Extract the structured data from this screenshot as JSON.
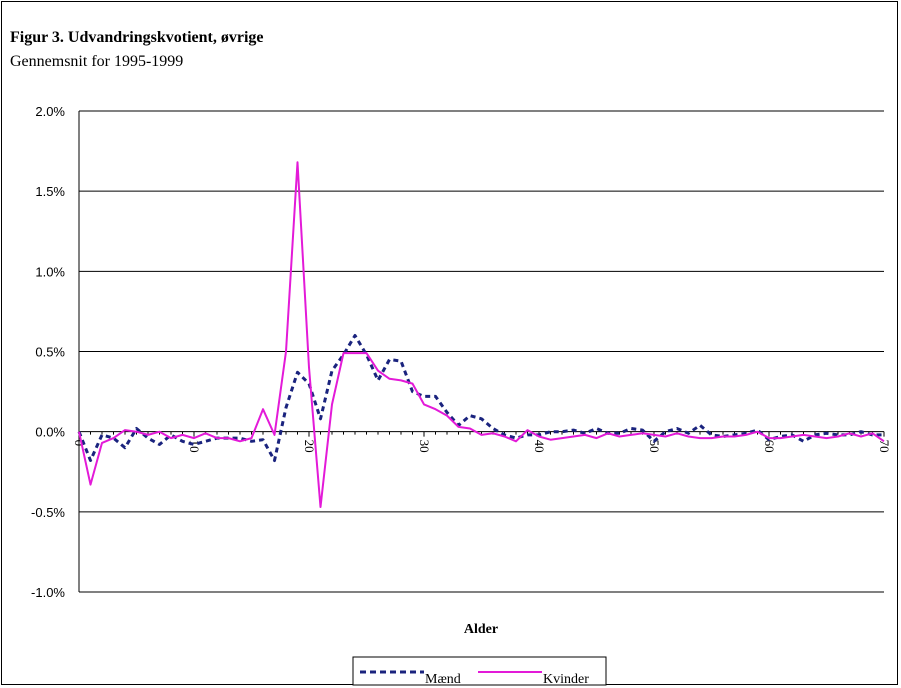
{
  "chart_data": {
    "type": "line",
    "title": "Figur 3. Udvandringskvotient, øvrige",
    "subtitle": "Gennemsnit for 1995-1999",
    "xlabel": "Alder",
    "ylabel": "",
    "xlim": [
      0,
      70
    ],
    "ylim": [
      -1.0,
      2.0
    ],
    "y_ticks": [
      {
        "value": -1.0,
        "label": "-1.0%"
      },
      {
        "value": -0.5,
        "label": "-0.5%"
      },
      {
        "value": 0.0,
        "label": "0.0%"
      },
      {
        "value": 0.5,
        "label": "0.5%"
      },
      {
        "value": 1.0,
        "label": "1.0%"
      },
      {
        "value": 1.5,
        "label": "1.5%"
      },
      {
        "value": 2.0,
        "label": "2.0%"
      }
    ],
    "x_ticks": [
      {
        "value": 0,
        "label": "0"
      },
      {
        "value": 10,
        "label": "10"
      },
      {
        "value": 20,
        "label": "20"
      },
      {
        "value": 30,
        "label": "30"
      },
      {
        "value": 40,
        "label": "40"
      },
      {
        "value": 50,
        "label": "50"
      },
      {
        "value": 60,
        "label": "60"
      },
      {
        "value": 70,
        "label": "70"
      }
    ],
    "grid": "horizontal",
    "legend_position": "bottom-center",
    "series": [
      {
        "name": "Mænd",
        "color": "#1a237e",
        "style": "dashed",
        "x": [
          0,
          1,
          2,
          3,
          4,
          5,
          6,
          7,
          8,
          9,
          10,
          11,
          12,
          13,
          14,
          15,
          16,
          17,
          18,
          19,
          20,
          21,
          22,
          23,
          24,
          25,
          26,
          27,
          28,
          29,
          30,
          31,
          32,
          33,
          34,
          35,
          36,
          37,
          38,
          39,
          40,
          41,
          42,
          43,
          44,
          45,
          46,
          47,
          48,
          49,
          50,
          51,
          52,
          53,
          54,
          55,
          56,
          57,
          58,
          59,
          60,
          61,
          62,
          63,
          64,
          65,
          66,
          67,
          68,
          69,
          70
        ],
        "values": [
          0.0,
          -0.18,
          -0.02,
          -0.04,
          -0.1,
          0.02,
          -0.04,
          -0.08,
          -0.02,
          -0.06,
          -0.08,
          -0.06,
          -0.04,
          -0.04,
          -0.04,
          -0.06,
          -0.05,
          -0.18,
          0.15,
          0.37,
          0.3,
          0.08,
          0.38,
          0.48,
          0.6,
          0.48,
          0.32,
          0.45,
          0.44,
          0.25,
          0.22,
          0.22,
          0.12,
          0.04,
          0.1,
          0.08,
          0.02,
          -0.02,
          -0.04,
          -0.02,
          -0.02,
          0.0,
          0.0,
          0.01,
          -0.01,
          0.02,
          -0.01,
          -0.01,
          0.02,
          0.01,
          -0.06,
          0.0,
          0.02,
          -0.01,
          0.04,
          -0.02,
          -0.03,
          -0.02,
          -0.01,
          0.01,
          -0.05,
          -0.03,
          -0.02,
          -0.06,
          -0.02,
          -0.01,
          -0.02,
          -0.02,
          0.0,
          -0.02,
          -0.02
        ]
      },
      {
        "name": "Kvinder",
        "color": "#e31ad8",
        "style": "solid",
        "x": [
          0,
          1,
          2,
          3,
          4,
          5,
          6,
          7,
          8,
          9,
          10,
          11,
          12,
          13,
          14,
          15,
          16,
          17,
          18,
          19,
          20,
          21,
          22,
          23,
          24,
          25,
          26,
          27,
          28,
          29,
          30,
          31,
          32,
          33,
          34,
          35,
          36,
          37,
          38,
          39,
          40,
          41,
          42,
          43,
          44,
          45,
          46,
          47,
          48,
          49,
          50,
          51,
          52,
          53,
          54,
          55,
          56,
          57,
          58,
          59,
          60,
          61,
          62,
          63,
          64,
          65,
          66,
          67,
          68,
          69,
          70
        ],
        "values": [
          0.0,
          -0.33,
          -0.07,
          -0.04,
          0.01,
          0.0,
          -0.02,
          0.0,
          -0.04,
          -0.02,
          -0.04,
          -0.01,
          -0.04,
          -0.04,
          -0.06,
          -0.04,
          0.14,
          -0.02,
          0.5,
          1.68,
          0.4,
          -0.47,
          0.17,
          0.49,
          0.49,
          0.49,
          0.38,
          0.33,
          0.32,
          0.3,
          0.17,
          0.14,
          0.1,
          0.03,
          0.02,
          -0.02,
          -0.01,
          -0.03,
          -0.06,
          0.01,
          -0.03,
          -0.05,
          -0.04,
          -0.03,
          -0.02,
          -0.04,
          -0.01,
          -0.03,
          -0.02,
          -0.01,
          -0.02,
          -0.03,
          -0.01,
          -0.03,
          -0.04,
          -0.04,
          -0.03,
          -0.03,
          -0.02,
          0.0,
          -0.04,
          -0.04,
          -0.03,
          -0.02,
          -0.03,
          -0.04,
          -0.03,
          -0.01,
          -0.03,
          -0.01,
          -0.06
        ]
      }
    ]
  }
}
